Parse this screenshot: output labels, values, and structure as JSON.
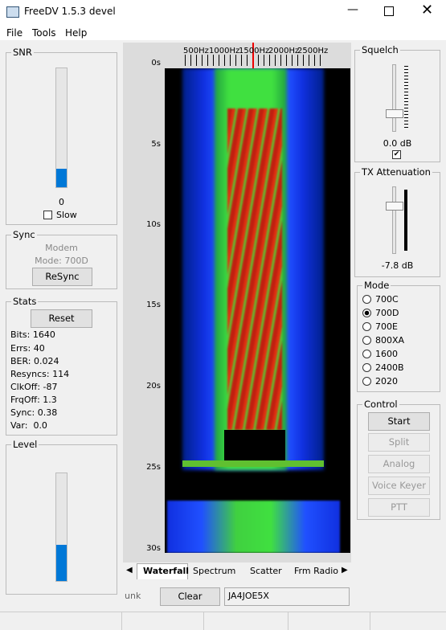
{
  "window": {
    "title": "FreeDV 1.5.3 devel"
  },
  "menu": [
    "File",
    "Tools",
    "Help"
  ],
  "snr": {
    "title": "SNR",
    "value": "0",
    "slow": "Slow"
  },
  "sync": {
    "title": "Sync",
    "status": "Modem",
    "mode": "Mode: 700D",
    "button": "ReSync"
  },
  "stats": {
    "title": "Stats",
    "button": "Reset",
    "lines": [
      "Bits: 1640",
      "Errs: 40",
      "BER: 0.024",
      "Resyncs: 114",
      "ClkOff: -87",
      "FrqOff: 1.3",
      "Sync: 0.38",
      "Var:  0.0"
    ]
  },
  "level": {
    "title": "Level"
  },
  "waterfall": {
    "freq_labels": [
      "500Hz",
      "1000Hz",
      "1500Hz",
      "2000Hz",
      "2500Hz"
    ],
    "time_labels": [
      "0s",
      "5s",
      "10s",
      "15s",
      "20s",
      "25s",
      "30s"
    ]
  },
  "tabs": [
    "Waterfall",
    "Spectrum",
    "Scatter",
    "Frm Radio"
  ],
  "bottom": {
    "unk": "unk",
    "clear": "Clear",
    "callsign": "JA4JOE5X"
  },
  "squelch": {
    "title": "Squelch",
    "value": "0.0 dB"
  },
  "tx": {
    "title": "TX Attenuation",
    "value": "-7.8 dB"
  },
  "mode": {
    "title": "Mode",
    "options": [
      "700C",
      "700D",
      "700E",
      "800XA",
      "1600",
      "2400B",
      "2020"
    ]
  },
  "control": {
    "title": "Control",
    "buttons": [
      "Start",
      "Split",
      "Analog",
      "Voice Keyer",
      "PTT"
    ]
  }
}
